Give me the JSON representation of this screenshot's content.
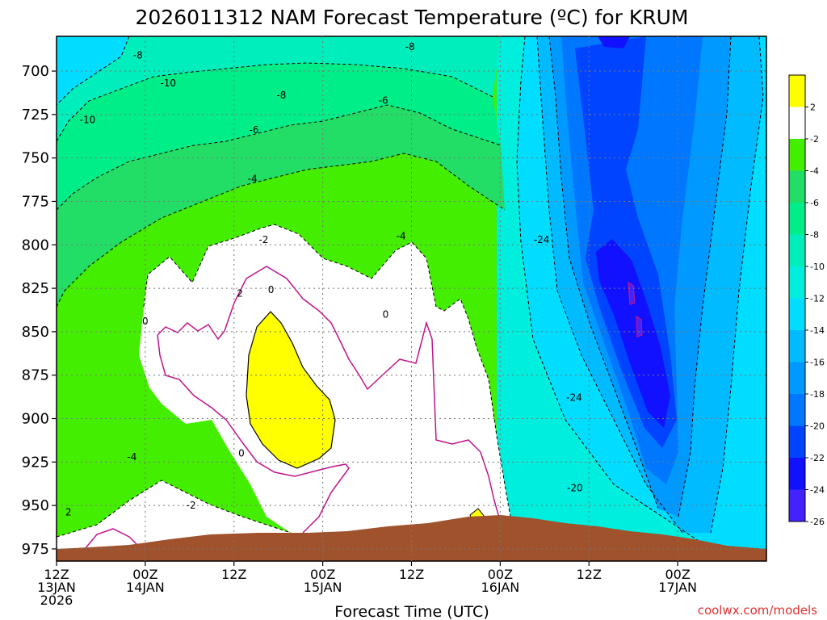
{
  "chart_data": {
    "type": "heatmap",
    "title": "2026011312 NAM Forecast Temperature (ºC) for KRUM",
    "xlabel": "Forecast Time (UTC)",
    "ylabel": "",
    "y_ticks": [
      700,
      725,
      750,
      775,
      800,
      825,
      850,
      875,
      900,
      925,
      950,
      975
    ],
    "y_tick_labels": [
      "700",
      "725",
      "750",
      "775",
      "800",
      "825",
      "850",
      "875",
      "900",
      "925",
      "950",
      "975"
    ],
    "ylim": [
      680,
      982
    ],
    "y_inverted": true,
    "x_hours": [
      0,
      12,
      24,
      36,
      48,
      60,
      72,
      84,
      96
    ],
    "x_tick_labels": [
      [
        "12Z",
        "13JAN",
        "2026"
      ],
      [
        "00Z",
        "14JAN"
      ],
      [
        "12Z"
      ],
      [
        "00Z",
        "15JAN"
      ],
      [
        "12Z"
      ],
      [
        "00Z",
        "16JAN"
      ],
      [
        "12Z"
      ],
      [
        "00Z",
        "17JAN"
      ]
    ],
    "x_tick_hours": [
      0,
      12,
      24,
      36,
      48,
      60,
      72,
      84
    ],
    "grid": true,
    "colorbar": {
      "labels": [
        "2",
        "-2",
        "-4",
        "-6",
        "-8",
        "-10",
        "-12",
        "-14",
        "-16",
        "-18",
        "-20",
        "-22",
        "-24",
        "-26"
      ],
      "colors": [
        "#ffff00",
        "#ffffff",
        "#44ee00",
        "#22dd66",
        "#00ee88",
        "#00eebb",
        "#00eedd",
        "#00ddff",
        "#00bbff",
        "#0099ff",
        "#0077ff",
        "#0044ff",
        "#1111ff",
        "#4422ff"
      ]
    },
    "contour_labels": [
      {
        "text": "-8",
        "hour": 11.0,
        "p": 691
      },
      {
        "text": "-10",
        "hour": 15.1,
        "p": 707
      },
      {
        "text": "-10",
        "hour": 4.2,
        "p": 728
      },
      {
        "text": "-8",
        "hour": 30.4,
        "p": 714
      },
      {
        "text": "-6",
        "hour": 26.7,
        "p": 734
      },
      {
        "text": "-6",
        "hour": 44.2,
        "p": 717
      },
      {
        "text": "-8",
        "hour": 47.8,
        "p": 686
      },
      {
        "text": "-4",
        "hour": 26.5,
        "p": 762
      },
      {
        "text": "-2",
        "hour": 28.0,
        "p": 797
      },
      {
        "text": "-4",
        "hour": 46.6,
        "p": 795
      },
      {
        "text": "-24",
        "hour": 65.6,
        "p": 797
      },
      {
        "text": "0",
        "hour": 29.0,
        "p": 826
      },
      {
        "text": "2",
        "hour": 24.8,
        "p": 828
      },
      {
        "text": "0",
        "hour": 12.0,
        "p": 844
      },
      {
        "text": "0",
        "hour": 44.5,
        "p": 840
      },
      {
        "text": "-24",
        "hour": 70.0,
        "p": 888
      },
      {
        "text": "-20",
        "hour": 70.1,
        "p": 940
      },
      {
        "text": "0",
        "hour": 25.0,
        "p": 920
      },
      {
        "text": "-4",
        "hour": 10.2,
        "p": 922
      },
      {
        "text": "-2",
        "hour": 18.2,
        "p": 950
      },
      {
        "text": "2",
        "hour": 1.6,
        "p": 954
      }
    ]
  },
  "credit": "coolwx.com/models"
}
